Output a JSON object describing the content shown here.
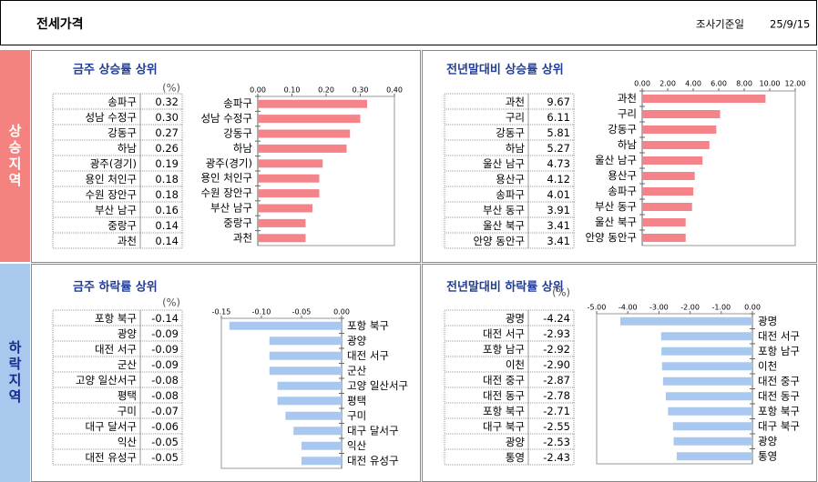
{
  "header": {
    "title": "전세가격",
    "date_label": "조사기준일",
    "date": "25/9/15"
  },
  "side": {
    "rise": "상승지역",
    "fall": "하락지역"
  },
  "chart_data": [
    {
      "type": "bar",
      "title": "금주 상승률 상위",
      "unit": "(%)",
      "color": "#f4838a",
      "categories": [
        "송파구",
        "성남 수정구",
        "강동구",
        "하남",
        "광주(경기)",
        "용인 처인구",
        "수원 장안구",
        "부산 남구",
        "중랑구",
        "과천"
      ],
      "values": [
        0.32,
        0.3,
        0.27,
        0.26,
        0.19,
        0.18,
        0.18,
        0.16,
        0.14,
        0.14
      ],
      "value_labels": [
        "0.32",
        "0.30",
        "0.27",
        "0.26",
        "0.19",
        "0.18",
        "0.18",
        "0.16",
        "0.14",
        "0.14"
      ],
      "xlim": [
        0,
        0.4
      ],
      "xticks": [
        {
          "value": 0,
          "label": "0.00"
        },
        {
          "value": 0.1,
          "label": "0.10"
        },
        {
          "value": 0.2,
          "label": "0.20"
        },
        {
          "value": 0.3,
          "label": "0.30"
        },
        {
          "value": 0.4,
          "label": "0.40"
        }
      ]
    },
    {
      "type": "bar",
      "title": "전년말대비 상승률 상위",
      "color": "#f4838a",
      "categories": [
        "과천",
        "구리",
        "강동구",
        "하남",
        "울산 남구",
        "용산구",
        "송파구",
        "부산 동구",
        "울산 북구",
        "안양 동안구"
      ],
      "values": [
        9.67,
        6.11,
        5.81,
        5.27,
        4.73,
        4.12,
        4.01,
        3.91,
        3.41,
        3.41
      ],
      "value_labels": [
        "9.67",
        "6.11",
        "5.81",
        "5.27",
        "4.73",
        "4.12",
        "4.01",
        "3.91",
        "3.41",
        "3.41"
      ],
      "xlim": [
        0,
        12
      ],
      "xticks": [
        {
          "value": 0,
          "label": "0.00"
        },
        {
          "value": 2,
          "label": "2.00"
        },
        {
          "value": 4,
          "label": "4.00"
        },
        {
          "value": 6,
          "label": "6.00"
        },
        {
          "value": 8,
          "label": "8.00"
        },
        {
          "value": 10,
          "label": "10.00"
        },
        {
          "value": 12,
          "label": "12.00"
        }
      ]
    },
    {
      "type": "bar",
      "title": "금주 하락률 상위",
      "unit": "(%)",
      "color": "#a8c8ef",
      "categories": [
        "포항 북구",
        "광양",
        "대전 서구",
        "군산",
        "고양 일산서구",
        "평택",
        "구미",
        "대구 달서구",
        "익산",
        "대전 유성구"
      ],
      "values": [
        -0.14,
        -0.09,
        -0.09,
        -0.09,
        -0.08,
        -0.08,
        -0.07,
        -0.06,
        -0.05,
        -0.05
      ],
      "value_labels": [
        "-0.14",
        "-0.09",
        "-0.09",
        "-0.09",
        "-0.08",
        "-0.08",
        "-0.07",
        "-0.06",
        "-0.05",
        "-0.05"
      ],
      "xlim": [
        -0.15,
        0
      ],
      "xticks": [
        {
          "value": -0.15,
          "label": "-0.15"
        },
        {
          "value": -0.1,
          "label": "-0.10"
        },
        {
          "value": -0.05,
          "label": "-0.05"
        },
        {
          "value": 0,
          "label": "0.00"
        }
      ]
    },
    {
      "type": "bar",
      "title": "전년말대비 하락률 상위",
      "unit": "(%)",
      "color": "#a8c8ef",
      "categories": [
        "광명",
        "대전 서구",
        "포항 남구",
        "이천",
        "대전 중구",
        "대전 동구",
        "포항 북구",
        "대구 북구",
        "광양",
        "통영"
      ],
      "values": [
        -4.24,
        -2.93,
        -2.92,
        -2.9,
        -2.87,
        -2.78,
        -2.71,
        -2.55,
        -2.53,
        -2.43
      ],
      "value_labels": [
        "-4.24",
        "-2.93",
        "-2.92",
        "-2.90",
        "-2.87",
        "-2.78",
        "-2.71",
        "-2.55",
        "-2.53",
        "-2.43"
      ],
      "xlim": [
        -5,
        0
      ],
      "xticks": [
        {
          "value": -5,
          "label": "-5.00"
        },
        {
          "value": -4,
          "label": "-4.00"
        },
        {
          "value": -3,
          "label": "-3.00"
        },
        {
          "value": -2,
          "label": "-2.00"
        },
        {
          "value": -1,
          "label": "-1.00"
        },
        {
          "value": 0,
          "label": "0.00"
        }
      ]
    }
  ]
}
